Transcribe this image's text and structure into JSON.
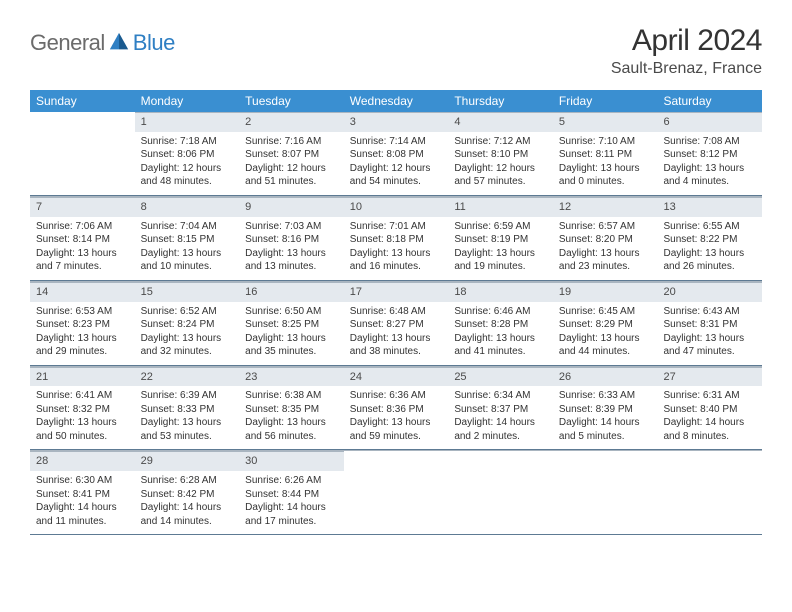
{
  "logo": {
    "part1": "General",
    "part2": "Blue"
  },
  "title": "April 2024",
  "location": "Sault-Brenaz, France",
  "colors": {
    "header_bg": "#3a8fd1",
    "daynum_bg": "#e4e9ee",
    "border": "#a9b5c0",
    "week_border": "#5d7a93",
    "text": "#333333"
  },
  "weekdays": [
    "Sunday",
    "Monday",
    "Tuesday",
    "Wednesday",
    "Thursday",
    "Friday",
    "Saturday"
  ],
  "weeks": [
    [
      {
        "n": "",
        "sunrise": "",
        "sunset": "",
        "daylight": ""
      },
      {
        "n": "1",
        "sunrise": "Sunrise: 7:18 AM",
        "sunset": "Sunset: 8:06 PM",
        "daylight": "Daylight: 12 hours and 48 minutes."
      },
      {
        "n": "2",
        "sunrise": "Sunrise: 7:16 AM",
        "sunset": "Sunset: 8:07 PM",
        "daylight": "Daylight: 12 hours and 51 minutes."
      },
      {
        "n": "3",
        "sunrise": "Sunrise: 7:14 AM",
        "sunset": "Sunset: 8:08 PM",
        "daylight": "Daylight: 12 hours and 54 minutes."
      },
      {
        "n": "4",
        "sunrise": "Sunrise: 7:12 AM",
        "sunset": "Sunset: 8:10 PM",
        "daylight": "Daylight: 12 hours and 57 minutes."
      },
      {
        "n": "5",
        "sunrise": "Sunrise: 7:10 AM",
        "sunset": "Sunset: 8:11 PM",
        "daylight": "Daylight: 13 hours and 0 minutes."
      },
      {
        "n": "6",
        "sunrise": "Sunrise: 7:08 AM",
        "sunset": "Sunset: 8:12 PM",
        "daylight": "Daylight: 13 hours and 4 minutes."
      }
    ],
    [
      {
        "n": "7",
        "sunrise": "Sunrise: 7:06 AM",
        "sunset": "Sunset: 8:14 PM",
        "daylight": "Daylight: 13 hours and 7 minutes."
      },
      {
        "n": "8",
        "sunrise": "Sunrise: 7:04 AM",
        "sunset": "Sunset: 8:15 PM",
        "daylight": "Daylight: 13 hours and 10 minutes."
      },
      {
        "n": "9",
        "sunrise": "Sunrise: 7:03 AM",
        "sunset": "Sunset: 8:16 PM",
        "daylight": "Daylight: 13 hours and 13 minutes."
      },
      {
        "n": "10",
        "sunrise": "Sunrise: 7:01 AM",
        "sunset": "Sunset: 8:18 PM",
        "daylight": "Daylight: 13 hours and 16 minutes."
      },
      {
        "n": "11",
        "sunrise": "Sunrise: 6:59 AM",
        "sunset": "Sunset: 8:19 PM",
        "daylight": "Daylight: 13 hours and 19 minutes."
      },
      {
        "n": "12",
        "sunrise": "Sunrise: 6:57 AM",
        "sunset": "Sunset: 8:20 PM",
        "daylight": "Daylight: 13 hours and 23 minutes."
      },
      {
        "n": "13",
        "sunrise": "Sunrise: 6:55 AM",
        "sunset": "Sunset: 8:22 PM",
        "daylight": "Daylight: 13 hours and 26 minutes."
      }
    ],
    [
      {
        "n": "14",
        "sunrise": "Sunrise: 6:53 AM",
        "sunset": "Sunset: 8:23 PM",
        "daylight": "Daylight: 13 hours and 29 minutes."
      },
      {
        "n": "15",
        "sunrise": "Sunrise: 6:52 AM",
        "sunset": "Sunset: 8:24 PM",
        "daylight": "Daylight: 13 hours and 32 minutes."
      },
      {
        "n": "16",
        "sunrise": "Sunrise: 6:50 AM",
        "sunset": "Sunset: 8:25 PM",
        "daylight": "Daylight: 13 hours and 35 minutes."
      },
      {
        "n": "17",
        "sunrise": "Sunrise: 6:48 AM",
        "sunset": "Sunset: 8:27 PM",
        "daylight": "Daylight: 13 hours and 38 minutes."
      },
      {
        "n": "18",
        "sunrise": "Sunrise: 6:46 AM",
        "sunset": "Sunset: 8:28 PM",
        "daylight": "Daylight: 13 hours and 41 minutes."
      },
      {
        "n": "19",
        "sunrise": "Sunrise: 6:45 AM",
        "sunset": "Sunset: 8:29 PM",
        "daylight": "Daylight: 13 hours and 44 minutes."
      },
      {
        "n": "20",
        "sunrise": "Sunrise: 6:43 AM",
        "sunset": "Sunset: 8:31 PM",
        "daylight": "Daylight: 13 hours and 47 minutes."
      }
    ],
    [
      {
        "n": "21",
        "sunrise": "Sunrise: 6:41 AM",
        "sunset": "Sunset: 8:32 PM",
        "daylight": "Daylight: 13 hours and 50 minutes."
      },
      {
        "n": "22",
        "sunrise": "Sunrise: 6:39 AM",
        "sunset": "Sunset: 8:33 PM",
        "daylight": "Daylight: 13 hours and 53 minutes."
      },
      {
        "n": "23",
        "sunrise": "Sunrise: 6:38 AM",
        "sunset": "Sunset: 8:35 PM",
        "daylight": "Daylight: 13 hours and 56 minutes."
      },
      {
        "n": "24",
        "sunrise": "Sunrise: 6:36 AM",
        "sunset": "Sunset: 8:36 PM",
        "daylight": "Daylight: 13 hours and 59 minutes."
      },
      {
        "n": "25",
        "sunrise": "Sunrise: 6:34 AM",
        "sunset": "Sunset: 8:37 PM",
        "daylight": "Daylight: 14 hours and 2 minutes."
      },
      {
        "n": "26",
        "sunrise": "Sunrise: 6:33 AM",
        "sunset": "Sunset: 8:39 PM",
        "daylight": "Daylight: 14 hours and 5 minutes."
      },
      {
        "n": "27",
        "sunrise": "Sunrise: 6:31 AM",
        "sunset": "Sunset: 8:40 PM",
        "daylight": "Daylight: 14 hours and 8 minutes."
      }
    ],
    [
      {
        "n": "28",
        "sunrise": "Sunrise: 6:30 AM",
        "sunset": "Sunset: 8:41 PM",
        "daylight": "Daylight: 14 hours and 11 minutes."
      },
      {
        "n": "29",
        "sunrise": "Sunrise: 6:28 AM",
        "sunset": "Sunset: 8:42 PM",
        "daylight": "Daylight: 14 hours and 14 minutes."
      },
      {
        "n": "30",
        "sunrise": "Sunrise: 6:26 AM",
        "sunset": "Sunset: 8:44 PM",
        "daylight": "Daylight: 14 hours and 17 minutes."
      },
      {
        "n": "",
        "sunrise": "",
        "sunset": "",
        "daylight": ""
      },
      {
        "n": "",
        "sunrise": "",
        "sunset": "",
        "daylight": ""
      },
      {
        "n": "",
        "sunrise": "",
        "sunset": "",
        "daylight": ""
      },
      {
        "n": "",
        "sunrise": "",
        "sunset": "",
        "daylight": ""
      }
    ]
  ]
}
